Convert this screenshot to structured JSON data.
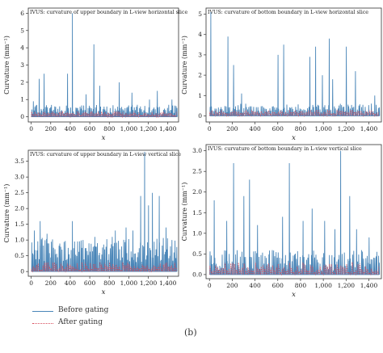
{
  "colors": {
    "before": "#4a86b8",
    "after": "#d64a5a",
    "axis": "#333333"
  },
  "legend": {
    "before": "Before gating",
    "after": "After gating"
  },
  "panel_label": "(b)",
  "chart_data": [
    {
      "type": "line",
      "title": "IVUS: curvature of upper boundary in L-view horizontal slice",
      "xlabel": "x",
      "ylabel": "Curvature (mm⁻¹)",
      "xlim": [
        -30,
        1510
      ],
      "ylim": [
        -0.3,
        6.3
      ],
      "xticks": [
        0,
        200,
        400,
        600,
        800,
        1000,
        1200,
        1400
      ],
      "xtick_labels": [
        "0",
        "200",
        "400",
        "600",
        "800",
        "1,000",
        "1,200",
        "1,400"
      ],
      "yticks": [
        0,
        1,
        2,
        3,
        4,
        5,
        6
      ],
      "series_before_base": [
        0.15,
        0.7
      ],
      "series_before_peaks": [
        [
          20,
          0.9
        ],
        [
          80,
          2.2
        ],
        [
          130,
          2.5
        ],
        [
          370,
          2.5
        ],
        [
          420,
          6.0
        ],
        [
          560,
          1.3
        ],
        [
          640,
          4.2
        ],
        [
          700,
          1.8
        ],
        [
          900,
          2.0
        ],
        [
          1030,
          1.4
        ],
        [
          1210,
          1.0
        ],
        [
          1290,
          1.5
        ],
        [
          1440,
          1.0
        ]
      ],
      "series_after_level": [
        0.1,
        0.32
      ]
    },
    {
      "type": "line",
      "title": "IVUS: curvature of bottom boundary in L-view horizontal slice",
      "xlabel": "x",
      "ylabel": "Curvature (mm⁻¹)",
      "xlim": [
        -30,
        1510
      ],
      "ylim": [
        -0.3,
        5.3
      ],
      "xticks": [
        0,
        200,
        400,
        600,
        800,
        1000,
        1200,
        1400
      ],
      "xtick_labels": [
        "0",
        "200",
        "400",
        "600",
        "800",
        "1,000",
        "1,200",
        "1,400"
      ],
      "yticks": [
        0,
        1,
        2,
        3,
        4,
        5
      ],
      "series_before_base": [
        0.15,
        0.6
      ],
      "series_before_peaks": [
        [
          10,
          5.1
        ],
        [
          160,
          3.9
        ],
        [
          210,
          2.5
        ],
        [
          280,
          1.1
        ],
        [
          600,
          3.0
        ],
        [
          650,
          3.5
        ],
        [
          880,
          2.9
        ],
        [
          930,
          3.4
        ],
        [
          990,
          2.0
        ],
        [
          1050,
          3.8
        ],
        [
          1080,
          1.8
        ],
        [
          1200,
          3.4
        ],
        [
          1280,
          2.2
        ],
        [
          1450,
          1.0
        ]
      ],
      "series_after_level": [
        0.1,
        0.3
      ]
    },
    {
      "type": "line",
      "title": "IVUS: curvature of upper boundary in L-view vertical slice",
      "xlabel": "x",
      "ylabel": "Curvature (mm⁻¹)",
      "xlim": [
        -30,
        1510
      ],
      "ylim": [
        -0.15,
        3.85
      ],
      "xticks": [
        0,
        200,
        400,
        600,
        800,
        1000,
        1200,
        1400
      ],
      "xtick_labels": [
        "0",
        "200",
        "400",
        "600",
        "800",
        "1,000",
        "1,200",
        "1,400"
      ],
      "yticks": [
        0,
        0.5,
        1.0,
        1.5,
        2.0,
        2.5,
        3.0,
        3.5
      ],
      "ytick_labels": [
        "0",
        "0.5",
        "1.0",
        "1.5",
        "2.0",
        "2.5",
        "3.0",
        "3.5"
      ],
      "series_before_base": [
        0.3,
        1.1
      ],
      "series_before_peaks": [
        [
          30,
          1.3
        ],
        [
          90,
          1.6
        ],
        [
          160,
          1.2
        ],
        [
          420,
          1.6
        ],
        [
          650,
          1.1
        ],
        [
          860,
          1.3
        ],
        [
          970,
          1.4
        ],
        [
          1040,
          1.3
        ],
        [
          1120,
          2.4
        ],
        [
          1160,
          3.8
        ],
        [
          1200,
          2.1
        ],
        [
          1240,
          2.5
        ],
        [
          1310,
          2.4
        ],
        [
          1380,
          1.4
        ],
        [
          1440,
          1.0
        ]
      ],
      "series_after_level": [
        0.05,
        0.3
      ]
    },
    {
      "type": "line",
      "title": "IVUS: curvature of bottom boundary in L-view vertical slice",
      "xlabel": "x",
      "ylabel": "Curvature (mm⁻¹)",
      "xlim": [
        -30,
        1510
      ],
      "ylim": [
        -0.1,
        3.15
      ],
      "xticks": [
        0,
        200,
        400,
        600,
        800,
        1000,
        1200,
        1400
      ],
      "xtick_labels": [
        "0",
        "200",
        "400",
        "600",
        "800",
        "1,000",
        "1,200",
        "1,400"
      ],
      "yticks": [
        0,
        0.5,
        1.0,
        1.5,
        2.0,
        2.5,
        3.0
      ],
      "ytick_labels": [
        "0.0",
        "0.5",
        "1.0",
        "1.5",
        "2.0",
        "2.5",
        "3.0"
      ],
      "series_before_base": [
        0.1,
        0.6
      ],
      "series_before_peaks": [
        [
          40,
          1.8
        ],
        [
          150,
          1.3
        ],
        [
          210,
          2.7
        ],
        [
          300,
          1.9
        ],
        [
          350,
          2.3
        ],
        [
          420,
          1.2
        ],
        [
          640,
          1.4
        ],
        [
          700,
          2.7
        ],
        [
          820,
          1.3
        ],
        [
          900,
          1.6
        ],
        [
          1010,
          1.3
        ],
        [
          1100,
          1.1
        ],
        [
          1150,
          3.0
        ],
        [
          1230,
          1.9
        ],
        [
          1290,
          1.1
        ],
        [
          1400,
          0.9
        ]
      ],
      "series_after_level": [
        0.05,
        0.3
      ]
    }
  ]
}
